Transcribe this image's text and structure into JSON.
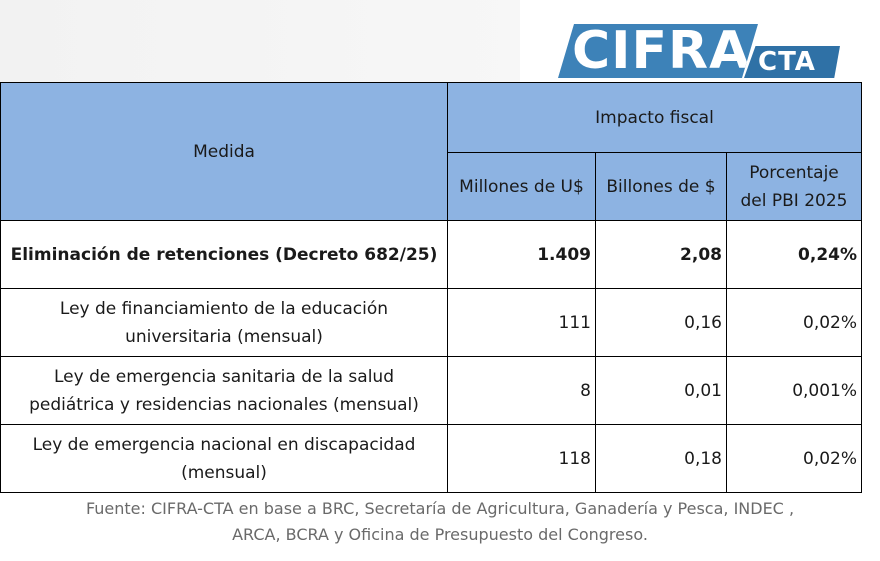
{
  "logo": {
    "main": "CIFRA",
    "sub": "CTA"
  },
  "table": {
    "header": {
      "measure": "Medida",
      "group": "Impacto fiscal",
      "col_usd": "Millones de U$",
      "col_ars": "Billones de $",
      "col_pbi_line1": "Porcentaje",
      "col_pbi_line2": "del PBI 2025"
    },
    "rows": [
      {
        "label_line1": "Eliminación de retenciones (Decreto 682/25)",
        "label_line2": "",
        "usd": "1.409",
        "ars": "2,08",
        "pbi": "0,24%"
      },
      {
        "label_line1": "Ley de financiamiento de la educación",
        "label_line2": "universitaria (mensual)",
        "usd": "111",
        "ars": "0,16",
        "pbi": "0,02%"
      },
      {
        "label_line1": "Ley de emergencia sanitaria de la salud",
        "label_line2": "pediátrica y residencias nacionales (mensual)",
        "usd": "8",
        "ars": "0,01",
        "pbi": "0,001%"
      },
      {
        "label_line1": "Ley de emergencia nacional en discapacidad",
        "label_line2": "(mensual)",
        "usd": "118",
        "ars": "0,18",
        "pbi": "0,02%"
      }
    ]
  },
  "source": {
    "line1": "Fuente: CIFRA-CTA en base a BRC, Secretaría de Agricultura, Ganadería y Pesca, INDEC ,",
    "line2": "ARCA, BCRA y Oficina de Presupuesto del Congreso."
  }
}
